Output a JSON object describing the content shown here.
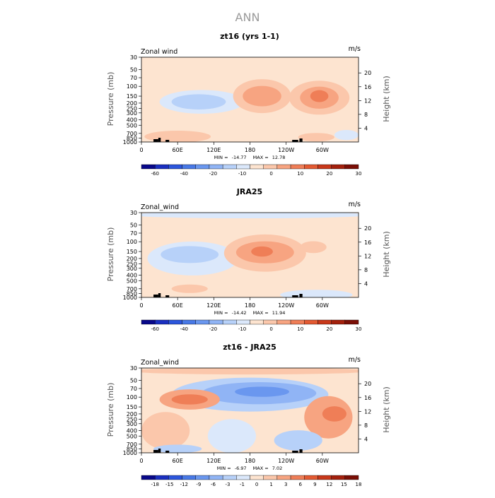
{
  "figure": {
    "title": "ANN"
  },
  "chart_data": [
    {
      "type": "heatmap",
      "title": "zt16 (yrs 1-1)",
      "variable": "Zonal wind",
      "units": "m/s",
      "ylabel": "Pressure (mb)",
      "ylabel_right": "Height (km)",
      "xticks": [
        "0",
        "60E",
        "120E",
        "180",
        "120W",
        "60W"
      ],
      "pressure_ticks": [
        "30",
        "50",
        "70",
        "100",
        "150",
        "200",
        "250",
        "300",
        "400",
        "500",
        "700",
        "850",
        "1000"
      ],
      "height_ticks": [
        "20",
        "16",
        "12",
        "8",
        "4"
      ],
      "stats": {
        "min_label": "MIN =",
        "min": "-14.77",
        "max_label": "MAX =",
        "max": "12.78"
      },
      "colorbar_labels": [
        "-60",
        "-40",
        "-20",
        "-10",
        "0",
        "10",
        "20",
        "30"
      ],
      "color_levels": [
        "#08088a",
        "#1a2fc0",
        "#2c56dc",
        "#4879e6",
        "#6a97ef",
        "#90b4f5",
        "#b7d1f9",
        "#dbe8fb",
        "#fde4d0",
        "#fbc7ab",
        "#f7a481",
        "#ef7e57",
        "#e35a32",
        "#c8381a",
        "#a3200c",
        "#7a0e05"
      ],
      "features": [
        {
          "kind": "easterly",
          "lon": 95,
          "p": 190,
          "value": -14.8
        },
        {
          "kind": "westerly",
          "lon": 200,
          "p": 150,
          "value": 9
        },
        {
          "kind": "westerly",
          "lon": 295,
          "p": 150,
          "value": 12.8
        },
        {
          "kind": "westerly",
          "lon": 60,
          "p": 800,
          "value": 6
        }
      ]
    },
    {
      "type": "heatmap",
      "title": "JRA25",
      "variable": "Zonal_wind",
      "units": "m/s",
      "ylabel": "Pressure (mb)",
      "ylabel_right": "Height (km)",
      "xticks": [
        "0",
        "60E",
        "120E",
        "180",
        "120W",
        "60W"
      ],
      "pressure_ticks": [
        "30",
        "50",
        "70",
        "100",
        "150",
        "200",
        "250",
        "300",
        "400",
        "500",
        "700",
        "850",
        "1000"
      ],
      "height_ticks": [
        "20",
        "16",
        "12",
        "8",
        "4"
      ],
      "stats": {
        "min_label": "MIN =",
        "min": "-14.42",
        "max_label": "MAX =",
        "max": "11.94"
      },
      "colorbar_labels": [
        "-60",
        "-40",
        "-20",
        "-10",
        "0",
        "10",
        "20",
        "30"
      ],
      "color_levels": [
        "#08088a",
        "#1a2fc0",
        "#2c56dc",
        "#4879e6",
        "#6a97ef",
        "#90b4f5",
        "#b7d1f9",
        "#dbe8fb",
        "#fde4d0",
        "#fbc7ab",
        "#f7a481",
        "#ef7e57",
        "#e35a32",
        "#c8381a",
        "#a3200c",
        "#7a0e05"
      ],
      "features": [
        {
          "kind": "easterly",
          "lon": 80,
          "p": 170,
          "value": -14.4
        },
        {
          "kind": "westerly",
          "lon": 200,
          "p": 160,
          "value": 11.9
        },
        {
          "kind": "westerly",
          "lon": 285,
          "p": 130,
          "value": 8
        }
      ]
    },
    {
      "type": "heatmap",
      "title": "zt16 - JRA25",
      "variable": "Zonal_wind",
      "units": "m/s",
      "ylabel": "Pressure (mb)",
      "ylabel_right": "Height (km)",
      "xticks": [
        "0",
        "60E",
        "120E",
        "180",
        "120W",
        "60W"
      ],
      "pressure_ticks": [
        "30",
        "50",
        "70",
        "100",
        "150",
        "200",
        "250",
        "300",
        "400",
        "500",
        "700",
        "850",
        "1000"
      ],
      "height_ticks": [
        "20",
        "16",
        "12",
        "8",
        "4"
      ],
      "stats": {
        "min_label": "MIN =",
        "min": "-6.97",
        "max_label": "MAX =",
        "max": "7.02"
      },
      "colorbar_labels": [
        "-18",
        "-15",
        "-12",
        "-9",
        "-6",
        "-3",
        "-1",
        "0",
        "1",
        "3",
        "6",
        "9",
        "12",
        "15",
        "18"
      ],
      "color_levels": [
        "#08088a",
        "#1a2fc0",
        "#2c56dc",
        "#4879e6",
        "#6a97ef",
        "#90b4f5",
        "#b7d1f9",
        "#dbe8fb",
        "#fde4d0",
        "#fbc7ab",
        "#f7a481",
        "#ef7e57",
        "#e35a32",
        "#c8381a",
        "#a3200c",
        "#7a0e05"
      ],
      "features": [
        {
          "kind": "easterly",
          "lon": 190,
          "p": 80,
          "value": -7.0
        },
        {
          "kind": "westerly",
          "lon": 80,
          "p": 110,
          "value": 6
        },
        {
          "kind": "westerly",
          "lon": 310,
          "p": 250,
          "value": 7.0
        }
      ]
    }
  ]
}
